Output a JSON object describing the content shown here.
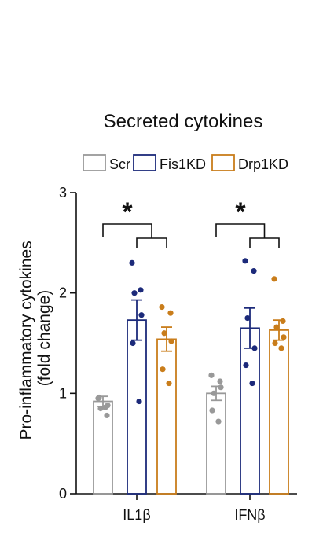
{
  "chart_data": {
    "type": "bar",
    "title": "Secreted cytokines",
    "ylabel": "Pro-inflammatory cytokines (fold change)",
    "ylabel_lines": [
      "Pro-inflammatory cytokines",
      "(fold change)"
    ],
    "xlabel": "",
    "ylim": [
      0,
      3
    ],
    "yticks": [
      0,
      1,
      2,
      3
    ],
    "ytick_labels": [
      "0",
      "1",
      "2",
      "3"
    ],
    "categories": [
      "IL1β",
      "IFNβ"
    ],
    "legend_position": "top",
    "grid": false,
    "series": [
      {
        "name": "Scr",
        "color": "#999999",
        "values": [
          0.92,
          1.0
        ],
        "sem": [
          0.05,
          0.07
        ],
        "points": [
          [
            0.95,
            0.78,
            0.85,
            0.88,
            0.96,
            0.86
          ],
          [
            1.18,
            1.12,
            1.0,
            1.06,
            0.83,
            0.72
          ]
        ]
      },
      {
        "name": "Fis1KD",
        "color": "#1c2a7a",
        "values": [
          1.73,
          1.65
        ],
        "sem": [
          0.2,
          0.2
        ],
        "points": [
          [
            2.3,
            2.03,
            2.0,
            1.78,
            1.5,
            0.92
          ],
          [
            2.32,
            2.22,
            1.75,
            1.45,
            1.28,
            1.1
          ]
        ]
      },
      {
        "name": "Drp1KD",
        "color": "#c97d1b",
        "values": [
          1.54,
          1.63
        ],
        "sem": [
          0.12,
          0.1
        ],
        "points": [
          [
            1.86,
            1.8,
            1.6,
            1.52,
            1.24,
            1.1
          ],
          [
            2.14,
            1.72,
            1.66,
            1.56,
            1.5,
            1.45
          ]
        ]
      }
    ],
    "annotations": [
      {
        "category": "IL1β",
        "text": "*"
      },
      {
        "category": "IFNβ",
        "text": "*"
      }
    ]
  }
}
